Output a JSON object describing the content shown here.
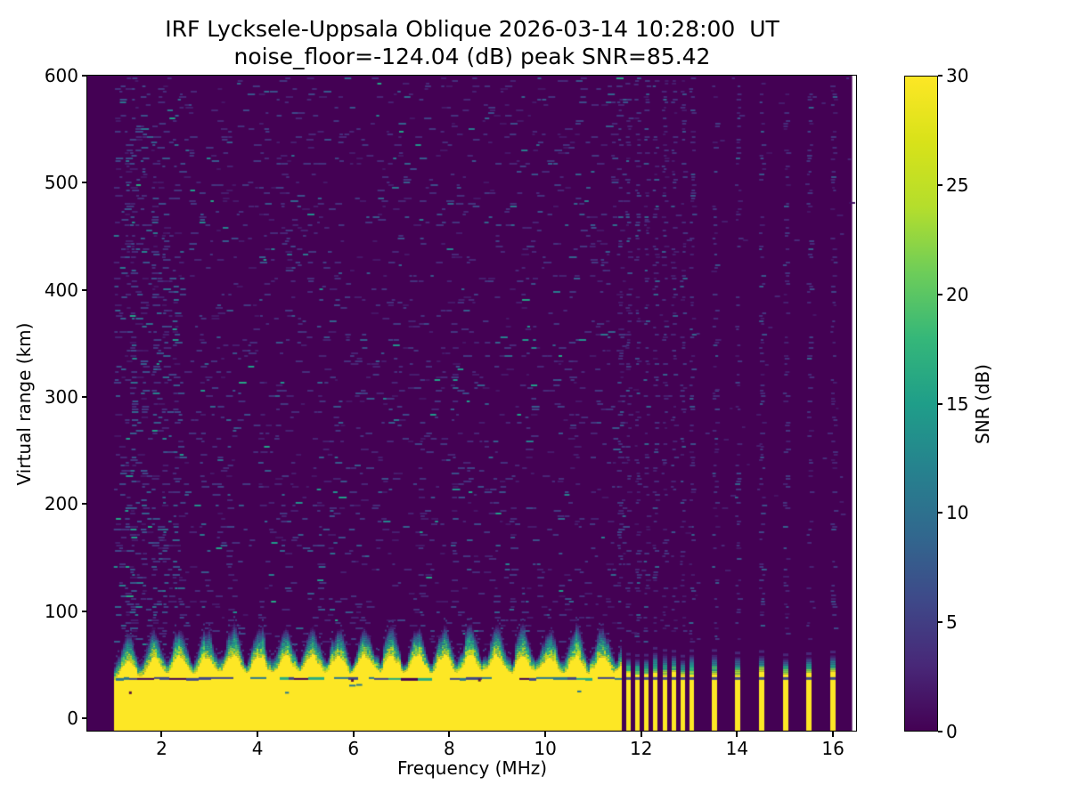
{
  "title": {
    "line1": "IRF Lycksele-Uppsala Oblique 2026-03-14 10:28:00  UT",
    "line2": "noise_floor=-124.04 (dB) peak SNR=85.42"
  },
  "chart_data": {
    "type": "heatmap",
    "title": "IRF Lycksele-Uppsala Oblique 2026-03-14 10:28:00  UT",
    "subtitle": "noise_floor=-124.04 (dB) peak SNR=85.42",
    "xlabel": "Frequency (MHz)",
    "ylabel": "Virtual range (km)",
    "xlim": [
      0.45,
      16.5
    ],
    "ylim": [
      -12.5,
      600
    ],
    "xticks": [
      2,
      4,
      6,
      8,
      10,
      12,
      14,
      16
    ],
    "yticks": [
      0,
      100,
      200,
      300,
      400,
      500,
      600
    ],
    "colorbar": {
      "label": "SNR (dB)",
      "min": 0,
      "max": 30,
      "ticks": [
        0,
        5,
        10,
        15,
        20,
        25,
        30
      ],
      "colormap": "viridis"
    },
    "noise_floor_db": -124.04,
    "peak_snr_db": 85.42,
    "data_extent": {
      "freq_mhz": [
        0.45,
        16.4
      ],
      "range_km": [
        -10,
        600
      ]
    },
    "ground_echo_band": {
      "freq_start_mhz": 1.0,
      "freq_end_mhz": 11.58,
      "yellow_top_km_base": 41,
      "yellow_top_km_bump": 15,
      "bump_period_mhz": 0.55,
      "gradient_thickness_km": 18,
      "dark_line_km": 37.5,
      "saturated_snr_db": 30
    },
    "discrete_stripes_mhz": {
      "narrow": [
        11.72,
        11.91,
        12.1,
        12.29,
        12.48,
        12.67,
        12.86,
        13.05
      ],
      "wide": [
        13.53,
        14.01,
        14.51,
        15.01,
        15.5,
        16.0
      ]
    },
    "noise_streaks": [
      {
        "f": 1.18,
        "top_km": 600
      },
      {
        "f": 1.38,
        "top_km": 560
      },
      {
        "f": 1.58,
        "top_km": 600
      },
      {
        "f": 1.78,
        "top_km": 520
      },
      {
        "f": 2.0,
        "top_km": 480
      },
      {
        "f": 2.2,
        "top_km": 430
      },
      {
        "f": 2.75,
        "top_km": 390
      },
      {
        "f": 3.3,
        "top_km": 300
      },
      {
        "f": 5.2,
        "top_km": 220
      },
      {
        "f": 6.1,
        "top_km": 180
      },
      {
        "f": 7.3,
        "top_km": 260
      },
      {
        "f": 8.05,
        "top_km": 380
      },
      {
        "f": 9.3,
        "top_km": 200
      },
      {
        "f": 10.4,
        "top_km": 160
      }
    ],
    "viridis_stops": [
      "#440154",
      "#482878",
      "#3e4989",
      "#31688e",
      "#26828e",
      "#1f9e89",
      "#35b779",
      "#6dcd59",
      "#b4de2c",
      "#d8e219",
      "#fde725"
    ],
    "dark_line_colors": [
      "#3f4788",
      "#2a788e",
      "#440154",
      "#27ad81",
      "#5c1a3a"
    ]
  }
}
